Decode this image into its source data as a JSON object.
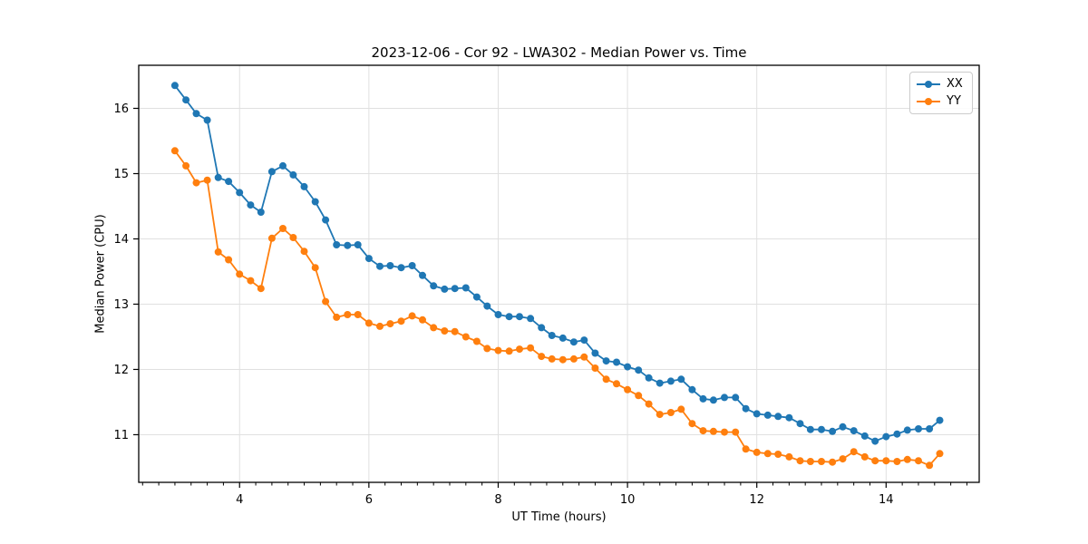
{
  "figure": {
    "background": "#ffffff"
  },
  "chart_data": {
    "type": "line",
    "title": "2023-12-06 - Cor 92 - LWA302 - Median Power vs. Time",
    "xlabel": "UT Time (hours)",
    "ylabel": "Median Power (CPU)",
    "xlim": [
      2.44,
      15.44
    ],
    "ylim": [
      10.27,
      16.66
    ],
    "x_ticks_major": [
      4,
      6,
      8,
      10,
      12,
      14
    ],
    "x_minor_tick_step": 0.25,
    "y_ticks_major": [
      11,
      12,
      13,
      14,
      15,
      16
    ],
    "grid": true,
    "legend_position": "upper right",
    "x": [
      3.0,
      3.17,
      3.33,
      3.5,
      3.67,
      3.83,
      4.0,
      4.17,
      4.33,
      4.5,
      4.67,
      4.83,
      5.0,
      5.17,
      5.33,
      5.5,
      5.67,
      5.83,
      6.0,
      6.17,
      6.33,
      6.5,
      6.67,
      6.83,
      7.0,
      7.17,
      7.33,
      7.5,
      7.67,
      7.83,
      8.0,
      8.17,
      8.33,
      8.5,
      8.67,
      8.83,
      9.0,
      9.17,
      9.33,
      9.5,
      9.67,
      9.83,
      10.0,
      10.17,
      10.33,
      10.5,
      10.67,
      10.83,
      11.0,
      11.17,
      11.33,
      11.5,
      11.67,
      11.83,
      12.0,
      12.17,
      12.33,
      12.5,
      12.67,
      12.83,
      13.0,
      13.17,
      13.33,
      13.5,
      13.67,
      13.83,
      14.0,
      14.17,
      14.33,
      14.5,
      14.67,
      14.83
    ],
    "series": [
      {
        "name": "XX",
        "color": "#1f77b4",
        "marker": "circle",
        "values": [
          16.35,
          16.13,
          15.92,
          15.82,
          14.94,
          14.88,
          14.71,
          14.52,
          14.41,
          15.03,
          15.12,
          14.98,
          14.8,
          14.57,
          14.29,
          13.91,
          13.9,
          13.91,
          13.7,
          13.58,
          13.59,
          13.56,
          13.59,
          13.44,
          13.28,
          13.23,
          13.24,
          13.25,
          13.11,
          12.97,
          12.84,
          12.81,
          12.81,
          12.78,
          12.64,
          12.52,
          12.48,
          12.42,
          12.45,
          12.25,
          12.13,
          12.11,
          12.04,
          11.99,
          11.87,
          11.79,
          11.82,
          11.85,
          11.69,
          11.55,
          11.53,
          11.57,
          11.57,
          11.4,
          11.32,
          11.3,
          11.28,
          11.26,
          11.17,
          11.08,
          11.08,
          11.05,
          11.12,
          11.06,
          10.98,
          10.9,
          10.97,
          11.01,
          11.07,
          11.09,
          11.09,
          11.22
        ]
      },
      {
        "name": "YY",
        "color": "#ff7f0e",
        "marker": "circle",
        "values": [
          15.35,
          15.12,
          14.86,
          14.9,
          13.8,
          13.68,
          13.46,
          13.36,
          13.24,
          14.01,
          14.16,
          14.02,
          13.81,
          13.56,
          13.04,
          12.8,
          12.84,
          12.84,
          12.71,
          12.66,
          12.7,
          12.74,
          12.82,
          12.76,
          12.64,
          12.59,
          12.58,
          12.5,
          12.43,
          12.32,
          12.29,
          12.28,
          12.31,
          12.33,
          12.2,
          12.16,
          12.15,
          12.16,
          12.19,
          12.02,
          11.85,
          11.78,
          11.69,
          11.6,
          11.47,
          11.31,
          11.34,
          11.39,
          11.17,
          11.06,
          11.05,
          11.04,
          11.04,
          10.78,
          10.73,
          10.71,
          10.7,
          10.66,
          10.6,
          10.59,
          10.59,
          10.58,
          10.63,
          10.74,
          10.66,
          10.6,
          10.6,
          10.59,
          10.62,
          10.6,
          10.53,
          10.71
        ]
      }
    ]
  },
  "style": {
    "grid_color": "#e0e0e0",
    "spine_color": "#000000",
    "tick_color": "#000000",
    "text_color": "#000000",
    "legend_border": "#cccccc",
    "line_width": 1.8,
    "marker_radius": 4
  }
}
